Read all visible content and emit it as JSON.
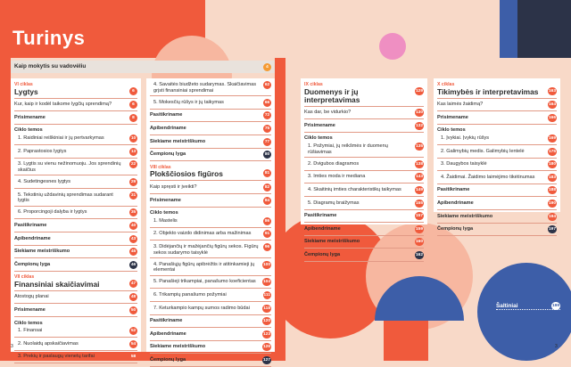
{
  "page_title": "Turinys",
  "intro": {
    "label": "Kaip mokytis su vadovėliu",
    "page": "4"
  },
  "col1": {
    "cycle1": "VI ciklas",
    "chapter1": {
      "title": "Lygtys",
      "page": "6"
    },
    "c1_q": {
      "text": "Kur, kaip ir kodėl taikome lygčių sprendimą?",
      "page": "6"
    },
    "c1_pris": {
      "text": "Prisimename",
      "page": "8"
    },
    "c1_topics": "Ciklo temos",
    "c1_items": [
      {
        "text": "1. Raidiniai reiškiniai ir jų pertvarkymas",
        "page": "10"
      },
      {
        "text": "2. Paprastosios lygtys",
        "page": "13"
      },
      {
        "text": "3. Lygtis su vienu nežinomuoju. Jos sprendinių skaičius",
        "page": "22"
      },
      {
        "text": "4. Sudetingesnes lygtys",
        "page": "29"
      },
      {
        "text": "5. Tekstinių uždavinių sprendimas sudarant lygtis",
        "page": "31"
      },
      {
        "text": "6. Proporcingoji dalyba ir lygtys",
        "page": "35"
      }
    ],
    "c1_end": [
      {
        "text": "Pasitikriname",
        "page": "40"
      },
      {
        "text": "Apibendriname",
        "page": "43"
      },
      {
        "text": "Siekiame meistriškumo",
        "page": "45"
      },
      {
        "text": "Čempionų lyga",
        "page": "46"
      }
    ],
    "cycle2": "VII ciklas",
    "chapter2": {
      "title": "Finansiniai skaičiavimai",
      "page": "47"
    },
    "c2_q": {
      "text": "Atostogų planai",
      "page": "48"
    },
    "c2_pris": {
      "text": "Prisimename",
      "page": "50"
    },
    "c2_topics": "Ciklo temos",
    "c2_items": [
      {
        "text": "1. Finansai",
        "page": "52"
      },
      {
        "text": "2. Nuolaidų apskaičiavimas",
        "page": "54"
      },
      {
        "text": "3. Prekių ir paslaugų vienetų tarifai",
        "page": "58"
      }
    ]
  },
  "col2": {
    "top_items": [
      {
        "text": "4. Savaitės biudžeto sudarymas. Skaičiavimas grįsti finansiniai sprendimai",
        "page": "62"
      },
      {
        "text": "5. Mokesčių rūšys ir jų taikymas",
        "page": "66"
      }
    ],
    "top_end": [
      {
        "text": "Pasitikriname",
        "page": "72"
      },
      {
        "text": "Apibendriname",
        "page": "75"
      },
      {
        "text": "Siekiame meistriškumo",
        "page": "77"
      },
      {
        "text": "Čempionų lyga",
        "page": "80"
      }
    ],
    "cycle": "VIII ciklas",
    "chapter": {
      "title": "Plokščiosios figūros",
      "page": "81"
    },
    "q": {
      "text": "Kaip spręsti ir įveikti?",
      "page": "82"
    },
    "pris": {
      "text": "Prisimename",
      "page": "84"
    },
    "topics": "Ciklo temos",
    "items": [
      {
        "text": "1. Mastelis",
        "page": "86"
      },
      {
        "text": "2. Objekto vaizdo didinimas arba mažinimas",
        "page": "91"
      },
      {
        "text": "3. Didėjančių ir mažėjančių figūrų sekos. Figūrų sekos sudarymo taisyklė",
        "page": "96"
      },
      {
        "text": "4. Panašiųjų figūrų apibrėžtis ir atitinkamieji jų elementai",
        "page": "100"
      },
      {
        "text": "5. Panašieji trikampiai, panašumo koeficientas",
        "page": "104"
      },
      {
        "text": "6. Trikampių panašumo požymiai",
        "page": "111"
      },
      {
        "text": "7. Keturkampio kampų sumos radimo būdai",
        "page": "118"
      }
    ],
    "end": [
      {
        "text": "Pasitikriname",
        "page": "120"
      },
      {
        "text": "Apibendriname",
        "page": "123"
      },
      {
        "text": "Siekiame meistriškumo",
        "page": "126"
      },
      {
        "text": "Čempionų lyga",
        "page": "127"
      }
    ]
  },
  "col3": {
    "cycle": "IX ciklas",
    "chapter": {
      "title": "Duomenys ir jų interpretavimas",
      "page": "129"
    },
    "q": {
      "text": "Kas dar, be vidurkio?",
      "page": "130"
    },
    "pris": {
      "text": "Prisimename",
      "page": "132"
    },
    "topics": "Ciklo temos",
    "items": [
      {
        "text": "1. Požymiai, jų reikšmės ir duomenų rūšiavimas",
        "page": "135"
      },
      {
        "text": "2. Dvigubos diagramos",
        "page": "138"
      },
      {
        "text": "3. Imties moda ir mediana",
        "page": "143"
      },
      {
        "text": "4. Skaitinių imties charakteristikų taikymas",
        "page": "149"
      },
      {
        "text": "5. Diagramų braižymas",
        "page": "155"
      }
    ],
    "end": [
      {
        "text": "Pasitikriname",
        "page": "157"
      },
      {
        "text": "Apibendriname",
        "page": "159"
      },
      {
        "text": "Siekiame meistriškumo",
        "page": "160"
      },
      {
        "text": "Čempionų lyga",
        "page": "162"
      }
    ]
  },
  "col4": {
    "cycle": "X ciklas",
    "chapter": {
      "title": "Tikimybės ir interpretavimas",
      "page": "163"
    },
    "q": {
      "text": "Kas laimės žaidimą?",
      "page": "164"
    },
    "pris": {
      "text": "Prisimename",
      "page": "166"
    },
    "topics": "Ciklo temos",
    "items": [
      {
        "text": "1. Įvykiai. Įvykių rūšys",
        "page": "169"
      },
      {
        "text": "2. Galimybių medis. Galimybių lentelė",
        "page": "175"
      },
      {
        "text": "3. Daugybos taisyklė",
        "page": "180"
      },
      {
        "text": "4. Žaidimai. Žaidimo laimėjimo tikėtinumas",
        "page": "183"
      }
    ],
    "end": [
      {
        "text": "Pasitikriname",
        "page": "188"
      },
      {
        "text": "Apibendriname",
        "page": "190"
      },
      {
        "text": "Siekiame meistriškumo",
        "page": "194"
      },
      {
        "text": "Čempionų lyga",
        "page": "197"
      }
    ]
  },
  "sources": {
    "label": "Šaltiniai",
    "page": "199"
  },
  "folio_left": "3",
  "folio_right": "3"
}
